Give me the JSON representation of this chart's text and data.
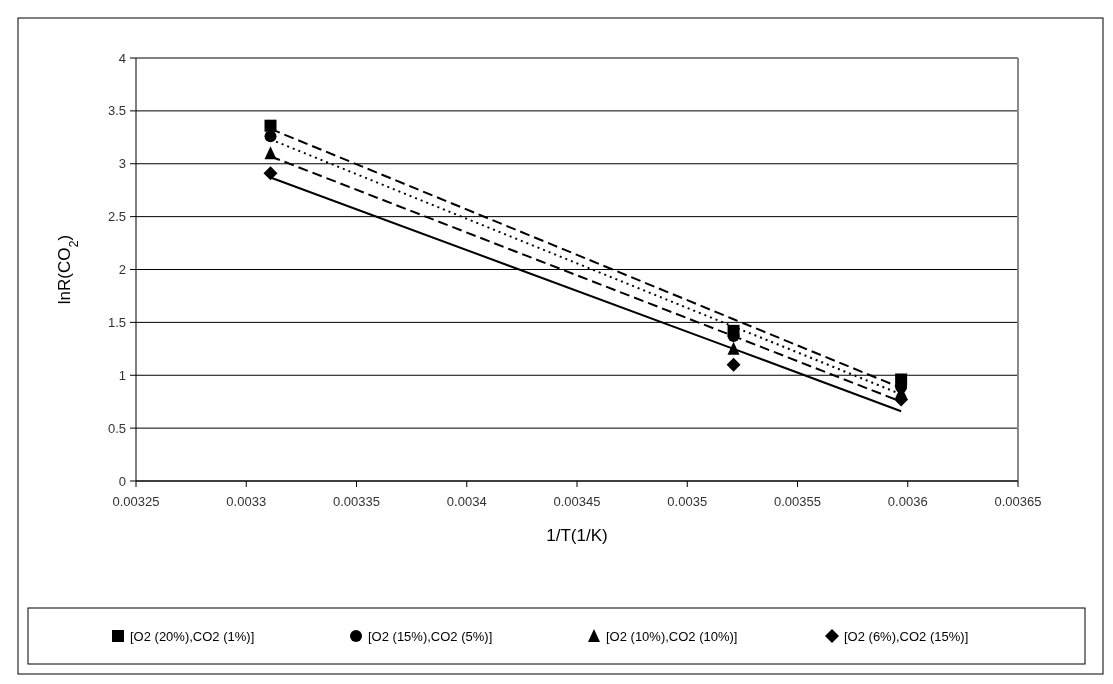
{
  "chart_data": {
    "type": "scatter",
    "xlabel": "1/T(1/K)",
    "ylabel": "lnR(CO$_{2}$)",
    "x": [
      0.003311,
      0.003521,
      0.003597
    ],
    "series": [
      {
        "name": "[O2 (20%),CO2 (1%)]",
        "color": "#000000",
        "marker": "square",
        "values": [
          3.36,
          1.42,
          0.96
        ]
      },
      {
        "name": "[O2 (15%),CO2 (5%)]",
        "color": "#000000",
        "marker": "circle",
        "values": [
          3.26,
          1.37,
          0.89
        ]
      },
      {
        "name": "[O2 (10%),CO2 (10%)]",
        "color": "#000000",
        "marker": "triangle",
        "values": [
          3.1,
          1.25,
          0.84
        ]
      },
      {
        "name": "[O2 (6%),CO2 (15%)]",
        "color": "#000000",
        "marker": "diamond",
        "values": [
          2.91,
          1.1,
          0.77
        ]
      },
      {
        "type": "line",
        "color": "#000000",
        "line_style": "dashed",
        "values": [
          3.33,
          1.53,
          0.88
        ]
      },
      {
        "type": "line",
        "color": "#000000",
        "line_style": "dotted",
        "values": [
          3.23,
          1.46,
          0.82
        ]
      },
      {
        "type": "line",
        "color": "#000000",
        "line_style": "dashed",
        "values": [
          3.07,
          1.37,
          0.75
        ]
      },
      {
        "type": "line",
        "color": "#000000",
        "line_style": "solid",
        "values": [
          2.87,
          1.25,
          0.66
        ]
      }
    ],
    "xlim": [
      0.00325,
      0.00365
    ],
    "xticks": [
      0.00325,
      0.0033,
      0.00335,
      0.0034,
      0.00345,
      0.0035,
      0.00355,
      0.0036,
      0.00365
    ],
    "ylim": [
      0,
      4
    ],
    "yticks": [
      0,
      0.5,
      1,
      1.5,
      2,
      2.5,
      3,
      3.5,
      4
    ],
    "grid": "y",
    "legend": "bottom"
  }
}
